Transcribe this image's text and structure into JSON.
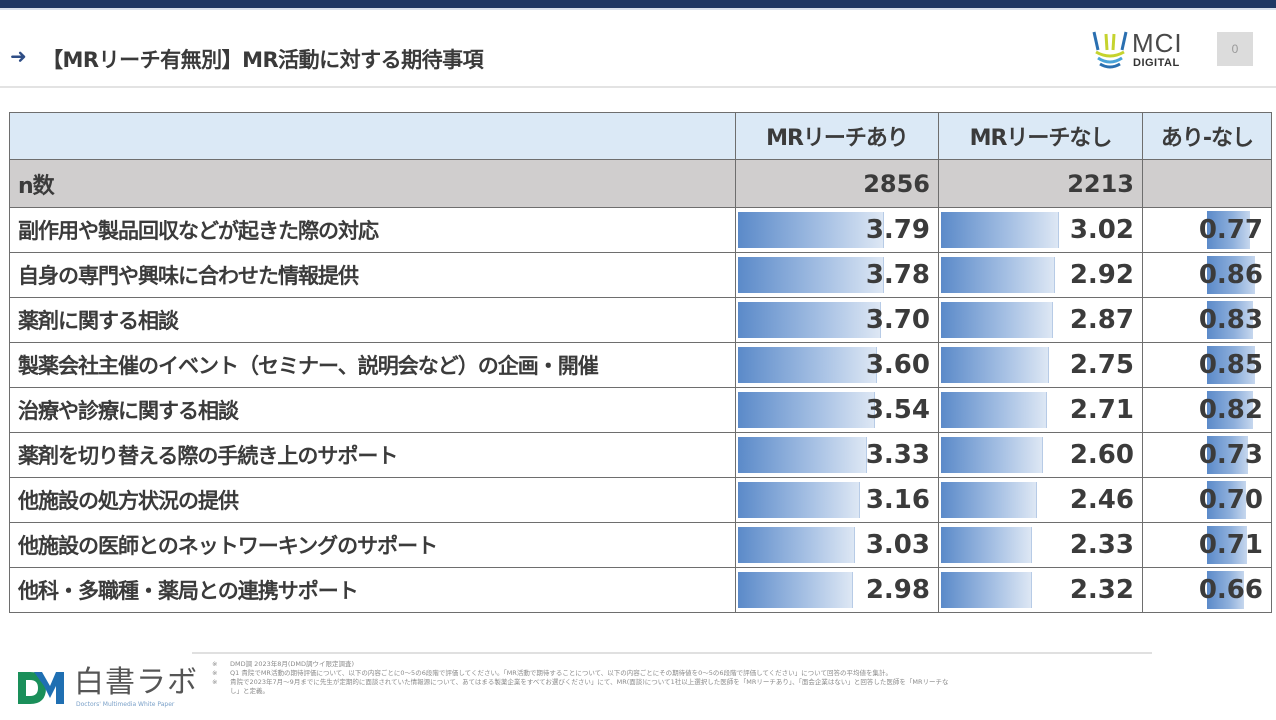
{
  "header": {
    "arrow_icon": "right-arrow-icon",
    "title": "【MRリーチ有無別】MR活動に対する期待事項",
    "brand_logo": {
      "name": "MCI",
      "sub": "DIGITAL",
      "icon": "mci-digital-logo-icon"
    },
    "page_number": "0"
  },
  "table": {
    "columns": [
      "",
      "MRリーチあり",
      "MRリーチなし",
      "あり-なし"
    ],
    "n_row": {
      "label": "n数",
      "values": [
        "2856",
        "2213",
        ""
      ]
    },
    "rows": [
      {
        "label": "副作用や製品回収などが起きた際の対応",
        "reach": "3.79",
        "noreach": "3.02",
        "diff": "0.77"
      },
      {
        "label": "自身の専門や興味に合わせた情報提供",
        "reach": "3.78",
        "noreach": "2.92",
        "diff": "0.86"
      },
      {
        "label": "薬剤に関する相談",
        "reach": "3.70",
        "noreach": "2.87",
        "diff": "0.83"
      },
      {
        "label": "製薬会社主催のイベント（セミナー、説明会など）の企画・開催",
        "reach": "3.60",
        "noreach": "2.75",
        "diff": "0.85"
      },
      {
        "label": "治療や診療に関する相談",
        "reach": "3.54",
        "noreach": "2.71",
        "diff": "0.82"
      },
      {
        "label": "薬剤を切り替える際の手続き上のサポート",
        "reach": "3.33",
        "noreach": "2.60",
        "diff": "0.73"
      },
      {
        "label": "他施設の処方状況の提供",
        "reach": "3.16",
        "noreach": "2.46",
        "diff": "0.70"
      },
      {
        "label": "他施設の医師とのネットワーキングのサポート",
        "reach": "3.03",
        "noreach": "2.33",
        "diff": "0.71"
      },
      {
        "label": "他科・多職種・薬局との連携サポート",
        "reach": "2.98",
        "noreach": "2.32",
        "diff": "0.66"
      }
    ],
    "bar_colors": {
      "start": "#5b8ac9",
      "end": "#dde7f4"
    }
  },
  "footer": {
    "logo": {
      "text": "白書ラボ",
      "sub": "Doctors' Multimedia White Paper",
      "icon": "dm-logo-icon"
    },
    "notes": [
      {
        "mark": "※",
        "text": "DMD調 2023年8月(DMD調ウイ限定調査)"
      },
      {
        "mark": "※",
        "text": "Q1 貴院でMR活動の期待評価について、以下の内容ごとに0〜5の6段階で評価してください。「MR活動で期待することについて、以下の内容ごとにその期待値を0〜5の6段階で評価してください」について回答の平均値を集計。"
      },
      {
        "mark": "※",
        "text": "貴院で2023年7月〜9月までに先生が定期的に面談されていた情報源について、あてはまる製薬企業をすべてお選びください」にて、MR(面談)について1社以上選択した医師を「MRリーチあり」、「面会企業はない」と回答した医師を「MRリーチな"
      },
      {
        "mark": "",
        "text": "し」と定義。"
      }
    ]
  },
  "chart_data": {
    "type": "table",
    "title": "【MRリーチ有無別】MR活動に対する期待事項",
    "columns": [
      "MRリーチあり",
      "MRリーチなし",
      "あり-なし"
    ],
    "n": {
      "MRリーチあり": 2856,
      "MRリーチなし": 2213
    },
    "categories": [
      "副作用や製品回収などが起きた際の対応",
      "自身の専門や興味に合わせた情報提供",
      "薬剤に関する相談",
      "製薬会社主催のイベント（セミナー、説明会など）の企画・開催",
      "治療や診療に関する相談",
      "薬剤を切り替える際の手続き上のサポート",
      "他施設の処方状況の提供",
      "他施設の医師とのネットワーキングのサポート",
      "他科・多職種・薬局との連携サポート"
    ],
    "series": [
      {
        "name": "MRリーチあり",
        "values": [
          3.79,
          3.78,
          3.7,
          3.6,
          3.54,
          3.33,
          3.16,
          3.03,
          2.98
        ]
      },
      {
        "name": "MRリーチなし",
        "values": [
          3.02,
          2.92,
          2.87,
          2.75,
          2.71,
          2.6,
          2.46,
          2.33,
          2.32
        ]
      },
      {
        "name": "あり-なし",
        "values": [
          0.77,
          0.86,
          0.83,
          0.85,
          0.82,
          0.73,
          0.7,
          0.71,
          0.66
        ]
      }
    ],
    "scale": [
      0,
      5
    ],
    "note": "In-cell data bars (blue gradient) proportional to values"
  }
}
